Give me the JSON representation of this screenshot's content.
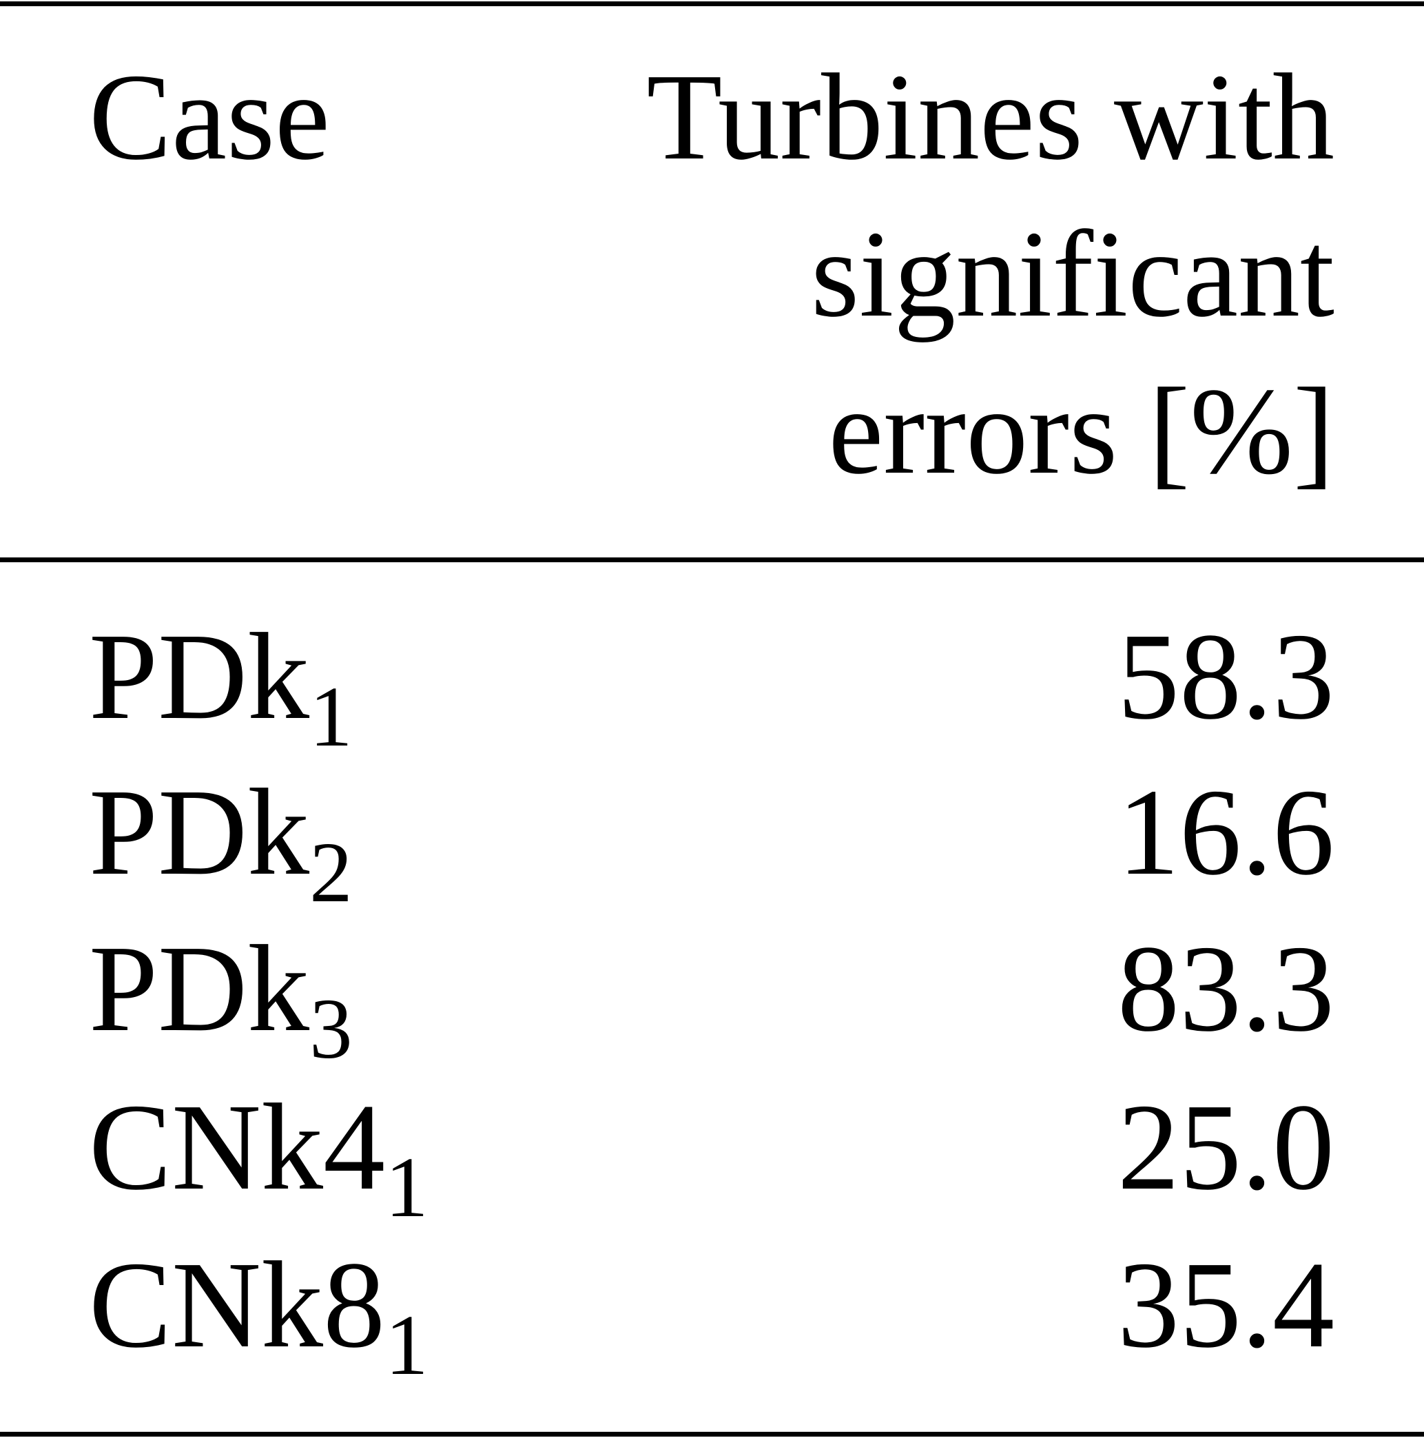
{
  "table": {
    "header": {
      "case": "Case",
      "value": "Turbines with significant errors [%]"
    },
    "rows": [
      {
        "case": {
          "base": "PDk",
          "sub": "1"
        },
        "value": "58.3"
      },
      {
        "case": {
          "base": "PDk",
          "sub": "2"
        },
        "value": "16.6"
      },
      {
        "case": {
          "base": "PDk",
          "sub": "3"
        },
        "value": "83.3"
      },
      {
        "case": {
          "base": "CNk4",
          "sub": "1"
        },
        "value": "25.0"
      },
      {
        "case": {
          "base": "CNk8",
          "sub": "1"
        },
        "value": "35.4"
      }
    ]
  }
}
